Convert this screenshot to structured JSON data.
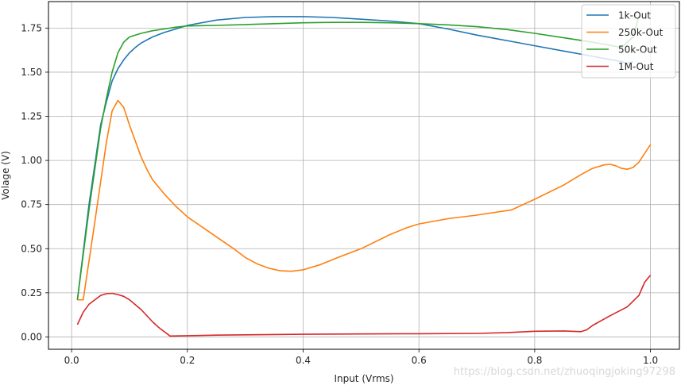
{
  "chart_data": {
    "type": "line",
    "title": "",
    "xlabel": "Input (Vrms)",
    "ylabel": "Volage (V)",
    "xlim": [
      -0.04,
      1.05
    ],
    "ylim": [
      -0.07,
      1.9
    ],
    "xticks": [
      0.0,
      0.2,
      0.4,
      0.6,
      0.8,
      1.0
    ],
    "xtick_labels": [
      "0.0",
      "0.2",
      "0.4",
      "0.6",
      "0.8",
      "1.0"
    ],
    "yticks": [
      0.0,
      0.25,
      0.5,
      0.75,
      1.0,
      1.25,
      1.5,
      1.75
    ],
    "ytick_labels": [
      "0.00",
      "0.25",
      "0.50",
      "0.75",
      "1.00",
      "1.25",
      "1.50",
      "1.75"
    ],
    "grid": true,
    "legend_position": "top-right",
    "series": [
      {
        "name": "1k-Out",
        "color": "#1f77b4",
        "x": [
          0.01,
          0.03,
          0.05,
          0.06,
          0.07,
          0.08,
          0.09,
          0.1,
          0.11,
          0.12,
          0.14,
          0.16,
          0.18,
          0.2,
          0.25,
          0.3,
          0.35,
          0.4,
          0.45,
          0.5,
          0.55,
          0.6,
          0.65,
          0.7,
          0.75,
          0.8,
          0.85,
          0.9,
          0.95,
          0.96,
          0.97
        ],
        "y": [
          0.21,
          0.75,
          1.2,
          1.33,
          1.45,
          1.52,
          1.57,
          1.61,
          1.64,
          1.665,
          1.7,
          1.725,
          1.745,
          1.765,
          1.795,
          1.81,
          1.815,
          1.815,
          1.81,
          1.8,
          1.79,
          1.775,
          1.745,
          1.71,
          1.68,
          1.65,
          1.62,
          1.59,
          1.56,
          1.55,
          1.56
        ]
      },
      {
        "name": "250k-Out",
        "color": "#ff7f0e",
        "x": [
          0.01,
          0.02,
          0.04,
          0.06,
          0.07,
          0.08,
          0.09,
          0.1,
          0.12,
          0.13,
          0.14,
          0.16,
          0.18,
          0.2,
          0.24,
          0.28,
          0.3,
          0.32,
          0.34,
          0.36,
          0.38,
          0.4,
          0.43,
          0.46,
          0.5,
          0.55,
          0.58,
          0.6,
          0.65,
          0.7,
          0.76,
          0.8,
          0.85,
          0.88,
          0.9,
          0.92,
          0.93,
          0.94,
          0.95,
          0.96,
          0.97,
          0.98,
          0.99,
          1.0
        ],
        "y": [
          0.21,
          0.21,
          0.65,
          1.1,
          1.28,
          1.34,
          1.3,
          1.2,
          1.02,
          0.95,
          0.89,
          0.81,
          0.74,
          0.68,
          0.59,
          0.5,
          0.45,
          0.415,
          0.39,
          0.375,
          0.372,
          0.38,
          0.41,
          0.45,
          0.5,
          0.58,
          0.62,
          0.64,
          0.67,
          0.69,
          0.72,
          0.78,
          0.86,
          0.92,
          0.955,
          0.975,
          0.978,
          0.97,
          0.955,
          0.95,
          0.96,
          0.99,
          1.04,
          1.09
        ]
      },
      {
        "name": "50k-Out",
        "color": "#2ca02c",
        "x": [
          0.01,
          0.03,
          0.05,
          0.06,
          0.07,
          0.08,
          0.09,
          0.1,
          0.12,
          0.14,
          0.16,
          0.18,
          0.2,
          0.25,
          0.3,
          0.35,
          0.4,
          0.45,
          0.5,
          0.55,
          0.6,
          0.65,
          0.7,
          0.75,
          0.8,
          0.85,
          0.9,
          0.95,
          0.97,
          0.98
        ],
        "y": [
          0.21,
          0.72,
          1.18,
          1.35,
          1.5,
          1.61,
          1.67,
          1.7,
          1.72,
          1.735,
          1.745,
          1.755,
          1.762,
          1.765,
          1.77,
          1.775,
          1.78,
          1.782,
          1.782,
          1.78,
          1.775,
          1.768,
          1.758,
          1.742,
          1.72,
          1.695,
          1.67,
          1.64,
          1.7,
          1.82
        ]
      },
      {
        "name": "1M-Out",
        "color": "#d62728",
        "x": [
          0.01,
          0.02,
          0.03,
          0.05,
          0.06,
          0.07,
          0.08,
          0.09,
          0.1,
          0.12,
          0.14,
          0.15,
          0.16,
          0.17,
          0.2,
          0.25,
          0.3,
          0.4,
          0.5,
          0.6,
          0.7,
          0.75,
          0.8,
          0.85,
          0.88,
          0.89,
          0.9,
          0.93,
          0.96,
          0.98,
          0.99,
          1.0
        ],
        "y": [
          0.07,
          0.14,
          0.185,
          0.235,
          0.245,
          0.247,
          0.24,
          0.23,
          0.21,
          0.155,
          0.085,
          0.055,
          0.03,
          0.005,
          0.007,
          0.01,
          0.012,
          0.015,
          0.017,
          0.018,
          0.02,
          0.024,
          0.032,
          0.034,
          0.03,
          0.04,
          0.065,
          0.12,
          0.17,
          0.235,
          0.31,
          0.35
        ]
      }
    ]
  },
  "watermark": "https://blog.csdn.net/zhuoqingjoking97298"
}
